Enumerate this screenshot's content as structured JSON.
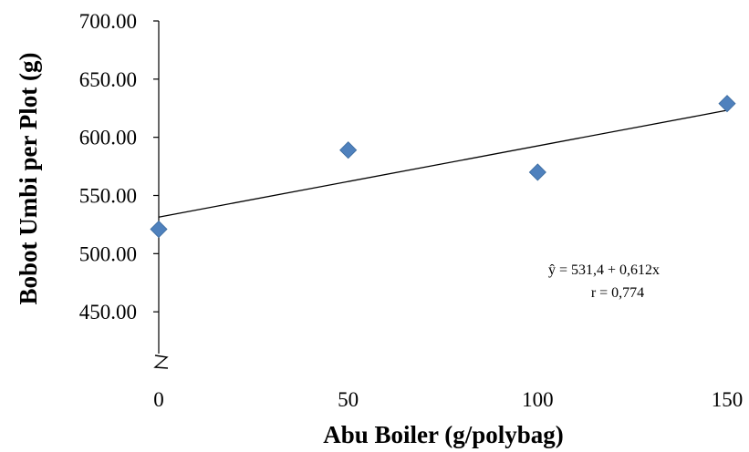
{
  "chart_data": {
    "type": "scatter",
    "xlabel": "Abu Boiler (g/polybag)",
    "ylabel": "Bobot Umbi per Plot (g)",
    "x_ticks": [
      "0",
      "50",
      "100",
      "150"
    ],
    "y_ticks": [
      "450.00",
      "500.00",
      "550.00",
      "600.00",
      "650.00",
      "700.00"
    ],
    "xlim": [
      0,
      150
    ],
    "ylim": [
      400,
      700
    ],
    "axis_break": true,
    "grid": false,
    "marker_color": "#4F81BD",
    "trendline_color": "#000000",
    "series": [
      {
        "x": [
          0,
          50,
          100,
          150
        ],
        "y": [
          521,
          589,
          570,
          629
        ]
      }
    ],
    "trendline": {
      "intercept": 531.4,
      "slope": 0.612
    },
    "annotations": {
      "equation": "ŷ =  531,4 + 0,612x",
      "correlation": "r = 0,774"
    }
  }
}
